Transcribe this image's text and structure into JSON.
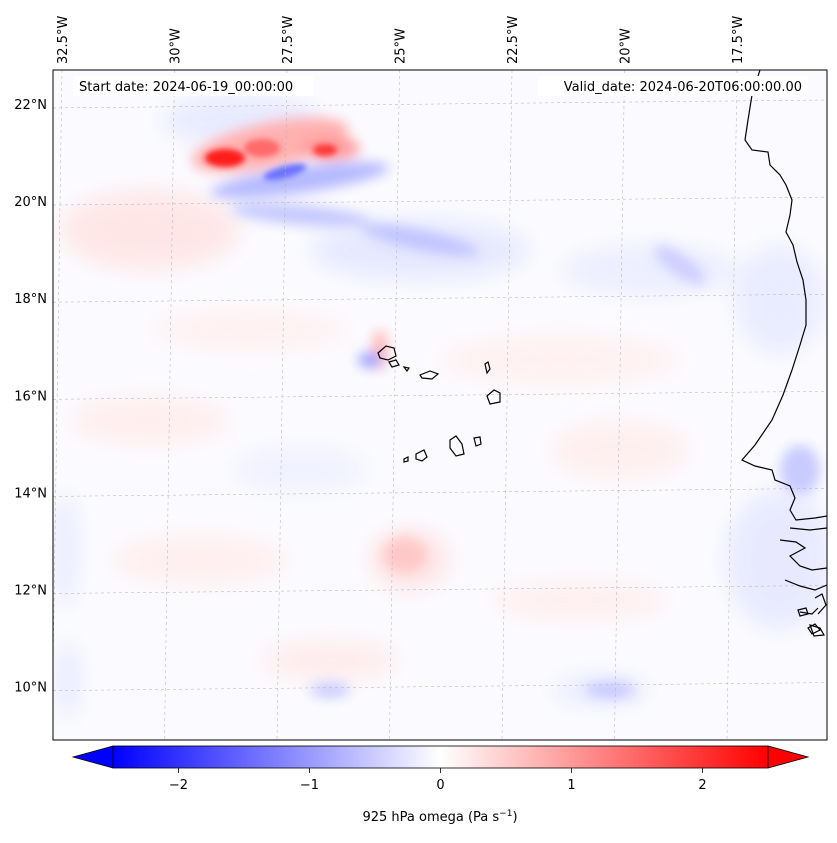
{
  "map": {
    "start_date": "Start date: 2024-06-19_00:00:00",
    "valid_date": "Valid_date: 2024-06-20T06:00:00.00",
    "lon_labels": [
      "32.5°W",
      "30°W",
      "27.5°W",
      "25°W",
      "22.5°W",
      "20°W",
      "17.5°W"
    ],
    "lat_labels": [
      "22°N",
      "20°N",
      "18°N",
      "16°N",
      "14°N",
      "12°N",
      "10°N"
    ],
    "lon_values": [
      -32.5,
      -30,
      -27.5,
      -25,
      -22.5,
      -20,
      -17.5
    ],
    "lat_values": [
      22,
      20,
      18,
      16,
      14,
      12,
      10
    ],
    "extent": {
      "lon_min": -32.7,
      "lon_max": -15.5,
      "lat_min": 8.9,
      "lat_max": 22.7
    },
    "field": "925 hPa omega",
    "gridlines": true
  },
  "colorbar": {
    "label_main": "925 hPa omega (Pa s",
    "label_exp": "−1",
    "label_close": ")",
    "ticks": [
      "−2",
      "−1",
      "0",
      "1",
      "2"
    ],
    "tick_values": [
      -2,
      -1,
      0,
      1,
      2
    ],
    "vmin": -2.5,
    "vmax": 2.5,
    "colormap": "bwr",
    "extend": "both"
  },
  "colors": {
    "negative": "#0000ff",
    "zero": "#ffffff",
    "positive": "#ff0000",
    "coast": "#000000",
    "grid": "#b0b0b0"
  }
}
